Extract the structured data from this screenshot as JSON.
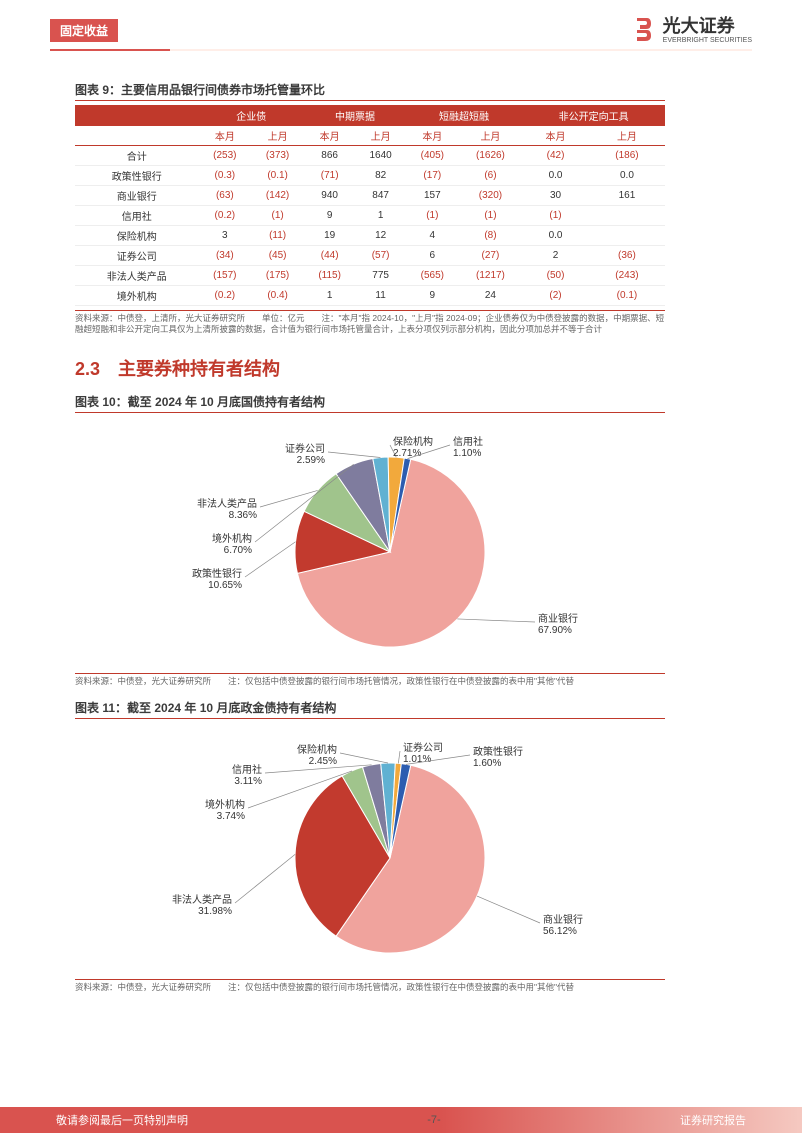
{
  "header": {
    "category": "固定收益",
    "brand_cn": "光大证券",
    "brand_en": "EVERBRIGHT SECURITIES"
  },
  "section_heading": {
    "number": "2.3",
    "text": "主要券种持有者结构"
  },
  "table9": {
    "title": "图表 9：主要信用品银行间债券市场托管量环比",
    "group_headers": [
      "",
      "企业债",
      "中期票据",
      "短融超短融",
      "非公开定向工具"
    ],
    "sub_headers": [
      "",
      "本月",
      "上月",
      "本月",
      "上月",
      "本月",
      "上月",
      "本月",
      "上月"
    ],
    "rows": [
      {
        "label": "合计",
        "cells": [
          "(253)",
          "(373)",
          "866",
          "1640",
          "(405)",
          "(1626)",
          "(42)",
          "(186)"
        ]
      },
      {
        "label": "政策性银行",
        "cells": [
          "(0.3)",
          "(0.1)",
          "(71)",
          "82",
          "(17)",
          "(6)",
          "0.0",
          "0.0"
        ]
      },
      {
        "label": "商业银行",
        "cells": [
          "(63)",
          "(142)",
          "940",
          "847",
          "157",
          "(320)",
          "30",
          "161"
        ]
      },
      {
        "label": "信用社",
        "cells": [
          "(0.2)",
          "(1)",
          "9",
          "1",
          "(1)",
          "(1)",
          "(1)",
          ""
        ]
      },
      {
        "label": "保险机构",
        "cells": [
          "3",
          "(11)",
          "19",
          "12",
          "4",
          "(8)",
          "0.0",
          ""
        ]
      },
      {
        "label": "证券公司",
        "cells": [
          "(34)",
          "(45)",
          "(44)",
          "(57)",
          "6",
          "(27)",
          "2",
          "(36)"
        ]
      },
      {
        "label": "非法人类产品",
        "cells": [
          "(157)",
          "(175)",
          "(115)",
          "775",
          "(565)",
          "(1217)",
          "(50)",
          "(243)"
        ]
      },
      {
        "label": "境外机构",
        "cells": [
          "(0.2)",
          "(0.4)",
          "1",
          "11",
          "9",
          "24",
          "(2)",
          "(0.1)"
        ]
      }
    ],
    "footnote": "资料来源：中债登，上清所，光大证券研究所　　单位：亿元　　注：\"本月\"指 2024-10，\"上月\"指 2024-09；企业债券仅为中债登披露的数据，中期票据、短融超短融和非公开定向工具仅为上清所披露的数据，合计值为银行间市场托管量合计，上表分项仅列示部分机构，因此分项加总并不等于合计"
  },
  "chart10": {
    "title": "图表 10：截至 2024 年 10 月底国债持有者结构",
    "type": "pie",
    "background_color": "#ffffff",
    "label_fontsize": 10,
    "slices": [
      {
        "name": "商业银行",
        "value": 67.9,
        "color": "#f0a39d",
        "label": "商业银行\n67.90%"
      },
      {
        "name": "政策性银行",
        "value": 10.65,
        "color": "#c23a2e",
        "label": "政策性银行\n10.65%"
      },
      {
        "name": "非法人类产品",
        "value": 8.36,
        "color": "#a0c48c",
        "label": "非法人类产品\n8.36%"
      },
      {
        "name": "境外机构",
        "value": 6.7,
        "color": "#7f7c9e",
        "label": "境外机构\n6.70%"
      },
      {
        "name": "证券公司",
        "value": 2.59,
        "color": "#60b1d2",
        "label": "证券公司\n2.59%"
      },
      {
        "name": "保险机构",
        "value": 2.71,
        "color": "#f2a93c",
        "label": "保险机构\n2.71%"
      },
      {
        "name": "信用社",
        "value": 1.1,
        "color": "#2d5db0",
        "label": "信用社\n1.10%"
      }
    ],
    "footnote": "资料来源：中债登，光大证券研究所　　注：仅包括中债登披露的银行间市场托管情况，政策性银行在中债登披露的表中用\"其他\"代替"
  },
  "chart11": {
    "title": "图表 11：截至 2024 年 10 月底政金债持有者结构",
    "type": "pie",
    "background_color": "#ffffff",
    "label_fontsize": 10,
    "slices": [
      {
        "name": "商业银行",
        "value": 56.12,
        "color": "#f0a39d",
        "label": "商业银行\n56.12%"
      },
      {
        "name": "非法人类产品",
        "value": 31.98,
        "color": "#c23a2e",
        "label": "非法人类产品\n31.98%"
      },
      {
        "name": "境外机构",
        "value": 3.74,
        "color": "#a0c48c",
        "label": "境外机构\n3.74%"
      },
      {
        "name": "信用社",
        "value": 3.11,
        "color": "#7f7c9e",
        "label": "信用社\n3.11%"
      },
      {
        "name": "保险机构",
        "value": 2.45,
        "color": "#60b1d2",
        "label": "保险机构\n2.45%"
      },
      {
        "name": "证券公司",
        "value": 1.01,
        "color": "#f2a93c",
        "label": "证券公司\n1.01%"
      },
      {
        "name": "政策性银行",
        "value": 1.6,
        "color": "#2d5db0",
        "label": "政策性银行\n1.60%"
      }
    ],
    "footnote": "资料来源：中债登，光大证券研究所　　注：仅包括中债登披露的银行间市场托管情况，政策性银行在中债登披露的表中用\"其他\"代替"
  },
  "footer": {
    "left": "敬请参阅最后一页特别声明",
    "center": "-7-",
    "right": "证券研究报告"
  }
}
